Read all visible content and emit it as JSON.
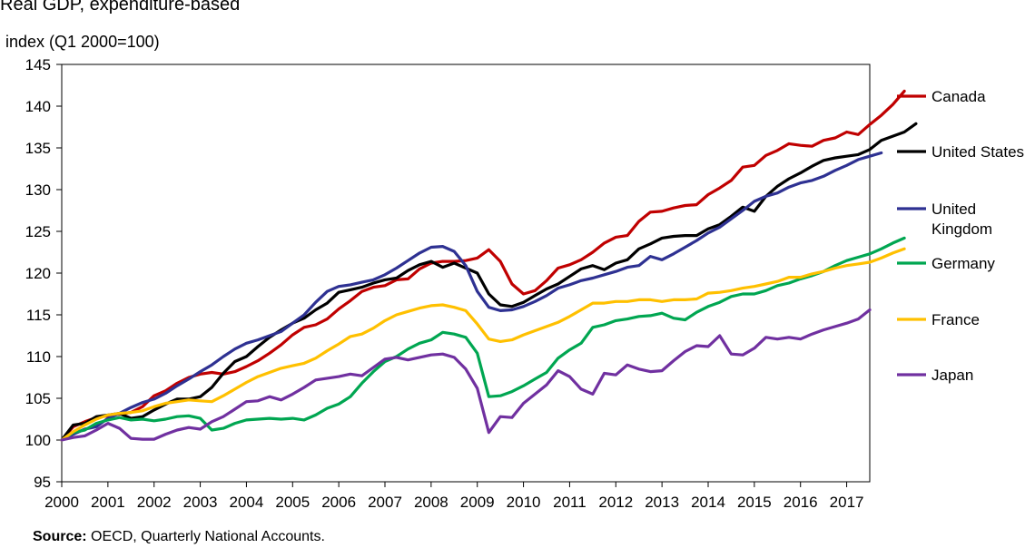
{
  "chart_data": {
    "type": "line",
    "title": "Real GDP, expenditure-based",
    "ylabel": "index (Q1 2000=100)",
    "xlabel": "",
    "ylim": [
      95,
      145
    ],
    "yticks": [
      95,
      100,
      105,
      110,
      115,
      120,
      125,
      130,
      135,
      140,
      145
    ],
    "xlim": [
      2000.0,
      2017.5
    ],
    "xticks": [
      "2000",
      "2001",
      "2002",
      "2003",
      "2004",
      "2005",
      "2006",
      "2007",
      "2008",
      "2009",
      "2010",
      "2011",
      "2012",
      "2013",
      "2014",
      "2015",
      "2016",
      "2017"
    ],
    "grid": false,
    "legend_position": "right",
    "x_quarters_start": "2000-Q1",
    "series": [
      {
        "name": "Canada",
        "color": "#c00000",
        "values": [
          100,
          101.6,
          102.2,
          102.7,
          102.9,
          103.1,
          103.3,
          104.0,
          105.3,
          105.9,
          106.8,
          107.5,
          107.9,
          108.1,
          107.9,
          108.2,
          108.8,
          109.5,
          110.4,
          111.4,
          112.6,
          113.5,
          113.8,
          114.5,
          115.7,
          116.7,
          117.8,
          118.3,
          118.5,
          119.2,
          119.3,
          120.5,
          121.2,
          121.4,
          121.4,
          121.5,
          121.8,
          122.8,
          121.4,
          118.7,
          117.5,
          117.9,
          119.1,
          120.6,
          121.0,
          121.6,
          122.5,
          123.6,
          124.3,
          124.5,
          126.2,
          127.3,
          127.4,
          127.8,
          128.1,
          128.2,
          129.4,
          130.2,
          131.1,
          132.7,
          132.9,
          134.1,
          134.7,
          135.5,
          135.3,
          135.2,
          135.9,
          136.2,
          136.9,
          136.6,
          137.8,
          138.9,
          140.2,
          141.8
        ]
      },
      {
        "name": "United States",
        "color": "#000000",
        "values": [
          100,
          101.8,
          102.0,
          102.8,
          103.0,
          103.2,
          102.6,
          102.8,
          103.6,
          104.3,
          104.9,
          104.9,
          105.2,
          106.3,
          108.0,
          109.4,
          110.0,
          111.2,
          112.3,
          113.2,
          114.0,
          114.6,
          115.6,
          116.4,
          117.7,
          118.0,
          118.3,
          118.8,
          119.2,
          119.4,
          120.3,
          121.0,
          121.4,
          120.7,
          121.2,
          120.6,
          120.0,
          117.5,
          116.2,
          116.0,
          116.5,
          117.3,
          118.1,
          118.7,
          119.6,
          120.5,
          120.9,
          120.4,
          121.2,
          121.6,
          122.9,
          123.5,
          124.2,
          124.4,
          124.5,
          124.5,
          125.3,
          125.8,
          126.8,
          127.9,
          127.4,
          129.2,
          130.4,
          131.3,
          132.0,
          132.8,
          133.5,
          133.8,
          134.0,
          134.2,
          134.8,
          135.9,
          136.4,
          136.9,
          137.9
        ]
      },
      {
        "name": "United\nKingdom",
        "color": "#2e3192",
        "values": [
          100,
          100.7,
          101.3,
          101.6,
          102.6,
          103.2,
          103.9,
          104.5,
          104.9,
          105.6,
          106.5,
          107.3,
          108.2,
          109.0,
          110.0,
          110.9,
          111.6,
          112.0,
          112.5,
          113.0,
          114.0,
          115.0,
          116.5,
          117.8,
          118.4,
          118.6,
          118.9,
          119.2,
          119.8,
          120.6,
          121.5,
          122.4,
          123.1,
          123.2,
          122.6,
          120.9,
          117.8,
          115.9,
          115.5,
          115.6,
          116.0,
          116.6,
          117.3,
          118.2,
          118.6,
          119.1,
          119.4,
          119.8,
          120.2,
          120.7,
          120.9,
          122.0,
          121.6,
          122.3,
          123.1,
          123.9,
          124.8,
          125.5,
          126.5,
          127.5,
          128.6,
          129.2,
          129.6,
          130.3,
          130.8,
          131.1,
          131.6,
          132.3,
          132.9,
          133.6,
          134.0,
          134.4
        ]
      },
      {
        "name": "Germany",
        "color": "#00a651",
        "values": [
          100,
          100.9,
          101.2,
          102.0,
          102.4,
          102.7,
          102.4,
          102.5,
          102.3,
          102.5,
          102.8,
          102.9,
          102.6,
          101.2,
          101.4,
          102.0,
          102.4,
          102.5,
          102.6,
          102.5,
          102.6,
          102.4,
          103.0,
          103.8,
          104.3,
          105.2,
          106.8,
          108.2,
          109.4,
          110.0,
          110.9,
          111.6,
          112.0,
          112.9,
          112.7,
          112.3,
          110.4,
          105.2,
          105.3,
          105.8,
          106.5,
          107.3,
          108.1,
          109.8,
          110.8,
          111.6,
          113.5,
          113.8,
          114.3,
          114.5,
          114.8,
          114.9,
          115.2,
          114.6,
          114.4,
          115.3,
          116.0,
          116.5,
          117.2,
          117.5,
          117.5,
          117.9,
          118.5,
          118.8,
          119.3,
          119.7,
          120.2,
          120.9,
          121.5,
          121.9,
          122.3,
          122.9,
          123.6,
          124.2
        ]
      },
      {
        "name": "France",
        "color": "#ffc000",
        "values": [
          100,
          101.0,
          101.8,
          102.5,
          103.0,
          103.2,
          103.3,
          103.5,
          104.0,
          104.4,
          104.6,
          104.8,
          104.7,
          104.6,
          105.3,
          106.1,
          106.9,
          107.6,
          108.1,
          108.6,
          108.9,
          109.2,
          109.8,
          110.7,
          111.5,
          112.4,
          112.7,
          113.4,
          114.3,
          115.0,
          115.4,
          115.8,
          116.1,
          116.2,
          115.9,
          115.5,
          113.9,
          112.1,
          111.8,
          112.0,
          112.6,
          113.1,
          113.6,
          114.1,
          114.8,
          115.6,
          116.4,
          116.4,
          116.6,
          116.6,
          116.8,
          116.8,
          116.6,
          116.8,
          116.8,
          116.9,
          117.6,
          117.7,
          117.9,
          118.2,
          118.4,
          118.7,
          119.0,
          119.5,
          119.5,
          119.9,
          120.2,
          120.6,
          120.9,
          121.1,
          121.3,
          121.8,
          122.4,
          122.9
        ]
      },
      {
        "name": "Japan",
        "color": "#7030a0",
        "values": [
          100,
          100.3,
          100.5,
          101.2,
          102.0,
          101.4,
          100.2,
          100.1,
          100.1,
          100.7,
          101.2,
          101.5,
          101.3,
          102.2,
          102.8,
          103.7,
          104.6,
          104.7,
          105.2,
          104.8,
          105.5,
          106.3,
          107.2,
          107.4,
          107.6,
          107.9,
          107.7,
          108.7,
          109.7,
          109.9,
          109.6,
          109.9,
          110.2,
          110.3,
          109.9,
          108.5,
          106.2,
          100.9,
          102.8,
          102.7,
          104.4,
          105.5,
          106.6,
          108.3,
          107.6,
          106.1,
          105.5,
          108.0,
          107.8,
          109.0,
          108.5,
          108.2,
          108.3,
          109.5,
          110.6,
          111.3,
          111.2,
          112.5,
          110.3,
          110.2,
          111.0,
          112.3,
          112.1,
          112.3,
          112.1,
          112.7,
          113.2,
          113.6,
          114.0,
          114.5,
          115.6
        ]
      }
    ]
  },
  "footer": {
    "source_label": "Source:",
    "source_text": " OECD, Quarterly National Accounts."
  }
}
